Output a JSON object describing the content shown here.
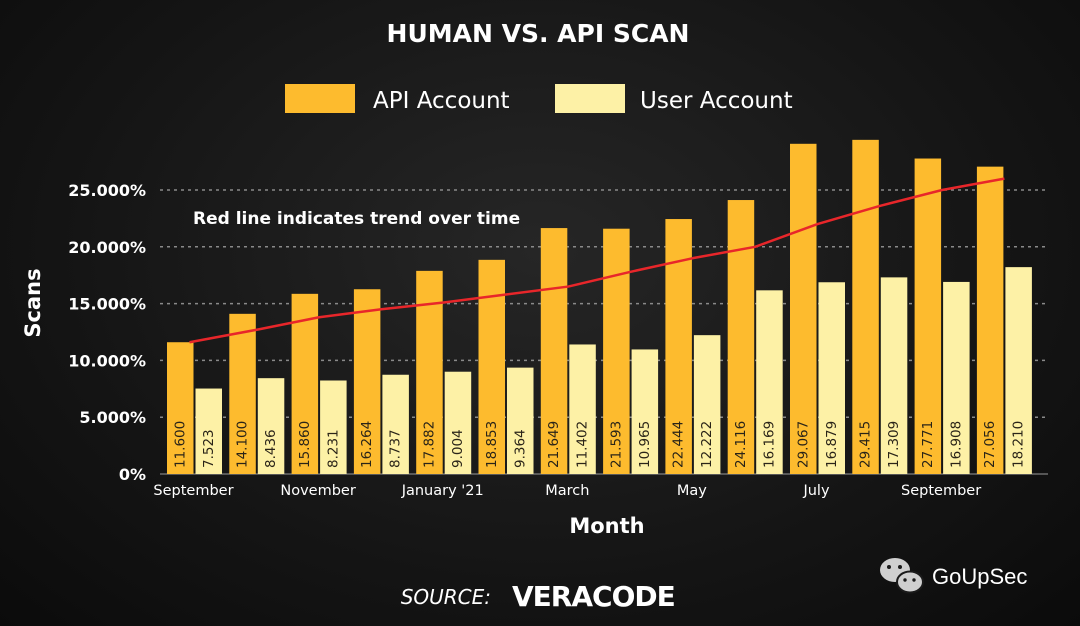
{
  "chart_data": {
    "type": "bar",
    "title": "HUMAN VS. API SCAN",
    "xlabel": "Month",
    "ylabel": "Scans",
    "ylim": [
      0,
      30000
    ],
    "yticks": [
      0,
      5000,
      10000,
      15000,
      20000,
      25000
    ],
    "ytick_labels": [
      "0%",
      "5.000%",
      "10.000%",
      "15.000%",
      "20.000%",
      "25.000%"
    ],
    "categories": [
      "",
      "",
      "",
      "",
      "",
      "",
      "",
      "",
      "",
      "",
      "",
      "",
      "",
      ""
    ],
    "category_labels": [
      {
        "index": 0,
        "text": "September"
      },
      {
        "index": 2,
        "text": "November"
      },
      {
        "index": 4,
        "text": "January '21"
      },
      {
        "index": 6,
        "text": "March"
      },
      {
        "index": 8,
        "text": "May"
      },
      {
        "index": 10,
        "text": "July"
      },
      {
        "index": 12,
        "text": "September"
      }
    ],
    "series": [
      {
        "name": "API Account",
        "color": "#fdbb2e",
        "values": [
          11600,
          14100,
          15860,
          16264,
          17882,
          18853,
          21649,
          21593,
          22444,
          24116,
          29067,
          29415,
          27771,
          27056
        ],
        "value_labels": [
          "11.600",
          "14.100",
          "15.860",
          "16.264",
          "17.882",
          "18.853",
          "21.649",
          "21.593",
          "22.444",
          "24.116",
          "29.067",
          "29.415",
          "27.771",
          "27.056"
        ]
      },
      {
        "name": "User Account",
        "color": "#fdf1a6",
        "values": [
          7523,
          8436,
          8231,
          8737,
          9004,
          9364,
          11402,
          10965,
          12222,
          16169,
          16879,
          17309,
          16908,
          18210
        ],
        "value_labels": [
          "7.523",
          "8.436",
          "8.231",
          "8.737",
          "9.004",
          "9.364",
          "11.402",
          "10.965",
          "12.222",
          "16.169",
          "16.879",
          "17.309",
          "16.908",
          "18.210"
        ]
      }
    ],
    "trend_line": {
      "color": "#e8262a",
      "values": [
        11600,
        12700,
        13800,
        14500,
        15100,
        15800,
        16500,
        17800,
        19000,
        20000,
        22000,
        23600,
        25000,
        26000
      ]
    },
    "annotation": "Red line indicates trend over time",
    "grid": true,
    "legend_position": "top"
  },
  "footer": {
    "source_label": "SOURCE:",
    "source_brand": "VERACODE"
  },
  "watermark": {
    "icon": "wechat-icon",
    "text": "GoUpSec"
  }
}
